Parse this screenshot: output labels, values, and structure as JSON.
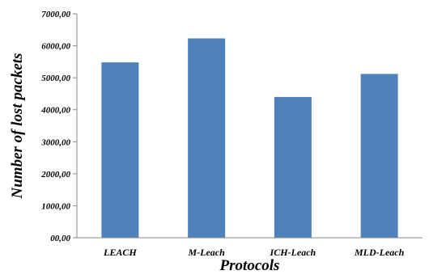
{
  "chart_data": {
    "type": "bar",
    "title": "",
    "xlabel": "Protocols",
    "ylabel": "Number of lost packets",
    "categories": [
      "LEACH",
      "M-Leach",
      "ICH-Leach",
      "MLD-Leach"
    ],
    "values": [
      5480,
      6230,
      4400,
      5120
    ],
    "ylim": [
      0,
      7000
    ],
    "yticks": [
      "00,00",
      "1000,00",
      "2000,00",
      "3000,00",
      "4000,00",
      "5000,00",
      "6000,00",
      "7000,00"
    ],
    "bar_color": "#4f81bd",
    "grid": false,
    "legend": "none"
  }
}
